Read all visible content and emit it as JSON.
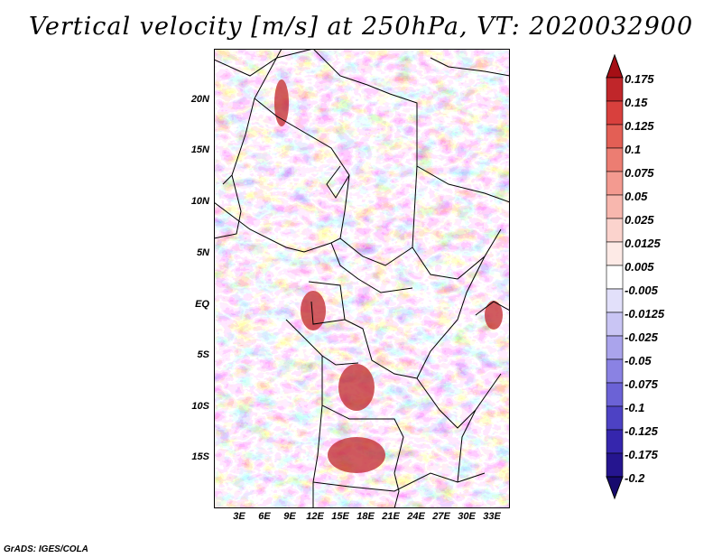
{
  "title": "Vertical velocity [m/s] at 250hPa, VT: 2020032900",
  "footer": "GrADS: IGES/COLA",
  "map": {
    "lat_labels": [
      "20N",
      "15N",
      "10N",
      "5N",
      "EQ",
      "5S",
      "10S",
      "15S"
    ],
    "lon_labels": [
      "3E",
      "6E",
      "9E",
      "12E",
      "15E",
      "18E",
      "21E",
      "24E",
      "27E",
      "30E",
      "33E"
    ]
  },
  "colorbar": {
    "labels": [
      "0.175",
      "0.15",
      "0.125",
      "0.1",
      "0.075",
      "0.05",
      "0.025",
      "0.0125",
      "0.005",
      "-0.005",
      "-0.0125",
      "-0.025",
      "-0.05",
      "-0.075",
      "-0.1",
      "-0.125",
      "-0.175",
      "-0.2"
    ],
    "colors": [
      "#a50f15",
      "#c0262a",
      "#d8403d",
      "#e35f55",
      "#ec7d72",
      "#f39a90",
      "#f8b7ae",
      "#fbd3cd",
      "#fdeae6",
      "#ffffff",
      "#e2e0fa",
      "#c9c5f4",
      "#aaa4ec",
      "#8a82e3",
      "#6b62d6",
      "#4d42c4",
      "#3526ad",
      "#25158f",
      "#170a6e"
    ]
  }
}
